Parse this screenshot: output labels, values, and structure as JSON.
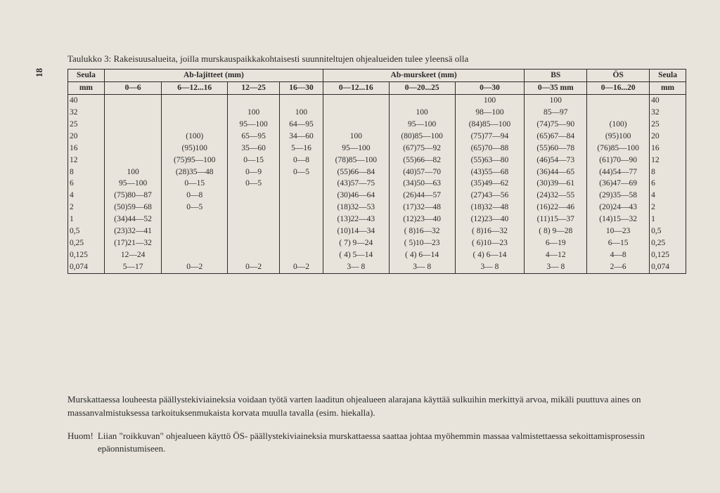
{
  "page_number": "18",
  "caption": "Taulukko 3: Rakeisuusalueita, joilla murskauspaikkakohtaisesti suunniteltujen ohjealueiden tulee yleensä olla",
  "group_headers": {
    "seula_left_1": "Seula",
    "seula_left_2": "mm",
    "ab_lajitteet": "Ab-lajitteet (mm)",
    "ab_murskeet": "Ab-murskeet (mm)",
    "bs_1": "BS",
    "bs_2": "0—35 mm",
    "os_1": "ÖS",
    "os_2": "0—16...20",
    "seula_right_1": "Seula",
    "seula_right_2": "mm"
  },
  "col_headers": {
    "c06": "0—6",
    "c612": "6—12...16",
    "c1225": "12—25",
    "c1630": "16—30",
    "c012": "0—12...16",
    "c020": "0—20...25",
    "c030": "0—30"
  },
  "rows": [
    {
      "s": "40",
      "c06": "",
      "c612": "",
      "c1225": "",
      "c1630": "",
      "c012": "",
      "c020": "",
      "c030": "100",
      "bs": "100",
      "os": "",
      "sr": "40"
    },
    {
      "s": "32",
      "c06": "",
      "c612": "",
      "c1225": "100",
      "c1630": "100",
      "c012": "",
      "c020": "100",
      "c030": "98—100",
      "bs": "85—97",
      "os": "",
      "sr": "32"
    },
    {
      "s": "25",
      "c06": "",
      "c612": "",
      "c1225": "95—100",
      "c1630": "64—95",
      "c012": "",
      "c020": "95—100",
      "c030": "(84)85—100",
      "bs": "(74)75—90",
      "os": "(100)",
      "sr": "25"
    },
    {
      "s": "20",
      "c06": "",
      "c612": "(100)",
      "c1225": "65—95",
      "c1630": "34—60",
      "c012": "100",
      "c020": "(80)85—100",
      "c030": "(75)77—94",
      "bs": "(65)67—84",
      "os": "(95)100",
      "sr": "20"
    },
    {
      "s": "16",
      "c06": "",
      "c612": "(95)100",
      "c1225": "35—60",
      "c1630": "5—16",
      "c012": "95—100",
      "c020": "(67)75—92",
      "c030": "(65)70—88",
      "bs": "(55)60—78",
      "os": "(76)85—100",
      "sr": "16"
    },
    {
      "s": "12",
      "c06": "",
      "c612": "(75)95—100",
      "c1225": "0—15",
      "c1630": "0—8",
      "c012": "(78)85—100",
      "c020": "(55)66—82",
      "c030": "(55)63—80",
      "bs": "(46)54—73",
      "os": "(61)70—90",
      "sr": "12"
    },
    {
      "s": "8",
      "c06": "100",
      "c612": "(28)35—48",
      "c1225": "0—9",
      "c1630": "0—5",
      "c012": "(55)66—84",
      "c020": "(40)57—70",
      "c030": "(43)55—68",
      "bs": "(36)44—65",
      "os": "(44)54—77",
      "sr": "8"
    },
    {
      "s": "6",
      "c06": "95—100",
      "c612": "0—15",
      "c1225": "0—5",
      "c1630": "",
      "c012": "(43)57—75",
      "c020": "(34)50—63",
      "c030": "(35)49—62",
      "bs": "(30)39—61",
      "os": "(36)47—69",
      "sr": "6"
    },
    {
      "s": "4",
      "c06": "(75)80—87",
      "c612": "0—8",
      "c1225": "",
      "c1630": "",
      "c012": "(30)46—64",
      "c020": "(26)44—57",
      "c030": "(27)43—56",
      "bs": "(24)32—55",
      "os": "(29)35—58",
      "sr": "4"
    },
    {
      "s": "2",
      "c06": "(50)59—68",
      "c612": "0—5",
      "c1225": "",
      "c1630": "",
      "c012": "(18)32—53",
      "c020": "(17)32—48",
      "c030": "(18)32—48",
      "bs": "(16)22—46",
      "os": "(20)24—43",
      "sr": "2"
    },
    {
      "s": "1",
      "c06": "(34)44—52",
      "c612": "",
      "c1225": "",
      "c1630": "",
      "c012": "(13)22—43",
      "c020": "(12)23—40",
      "c030": "(12)23—40",
      "bs": "(11)15—37",
      "os": "(14)15—32",
      "sr": "1"
    },
    {
      "s": "0,5",
      "c06": "(23)32—41",
      "c612": "",
      "c1225": "",
      "c1630": "",
      "c012": "(10)14—34",
      "c020": "( 8)16—32",
      "c030": "( 8)16—32",
      "bs": "( 8) 9—28",
      "os": "10—23",
      "sr": "0,5"
    },
    {
      "s": "0,25",
      "c06": "(17)21—32",
      "c612": "",
      "c1225": "",
      "c1630": "",
      "c012": "( 7) 9—24",
      "c020": "( 5)10—23",
      "c030": "( 6)10—23",
      "bs": "6—19",
      "os": "6—15",
      "sr": "0,25"
    },
    {
      "s": "0,125",
      "c06": "12—24",
      "c612": "",
      "c1225": "",
      "c1630": "",
      "c012": "( 4) 5—14",
      "c020": "( 4) 6—14",
      "c030": "( 4) 6—14",
      "bs": "4—12",
      "os": "4—8",
      "sr": "0,125"
    },
    {
      "s": "0,074",
      "c06": "5—17",
      "c612": "0—2",
      "c1225": "0—2",
      "c1630": "0—2",
      "c012": "3— 8",
      "c020": "3— 8",
      "c030": "3— 8",
      "bs": "3— 8",
      "os": "2—6",
      "sr": "0,074"
    }
  ],
  "note1": "Murskattaessa louheesta päällystekiviaineksia voidaan työtä varten laaditun ohjealueen alarajana käyttää sulkuihin merkittyä arvoa, mikäli puuttuva aines on massanvalmistuksessa tarkoituksenmukaista korvata muulla tavalla (esim. hiekalla).",
  "huom_label": "Huom!",
  "huom_text": "Liian \"roikkuvan\" ohjealueen käyttö ÖS- päällystekiviaineksia murskattaessa saattaa johtaa myöhemmin massaa valmistettaessa sekoittamisprosessin epäonnistumiseen."
}
